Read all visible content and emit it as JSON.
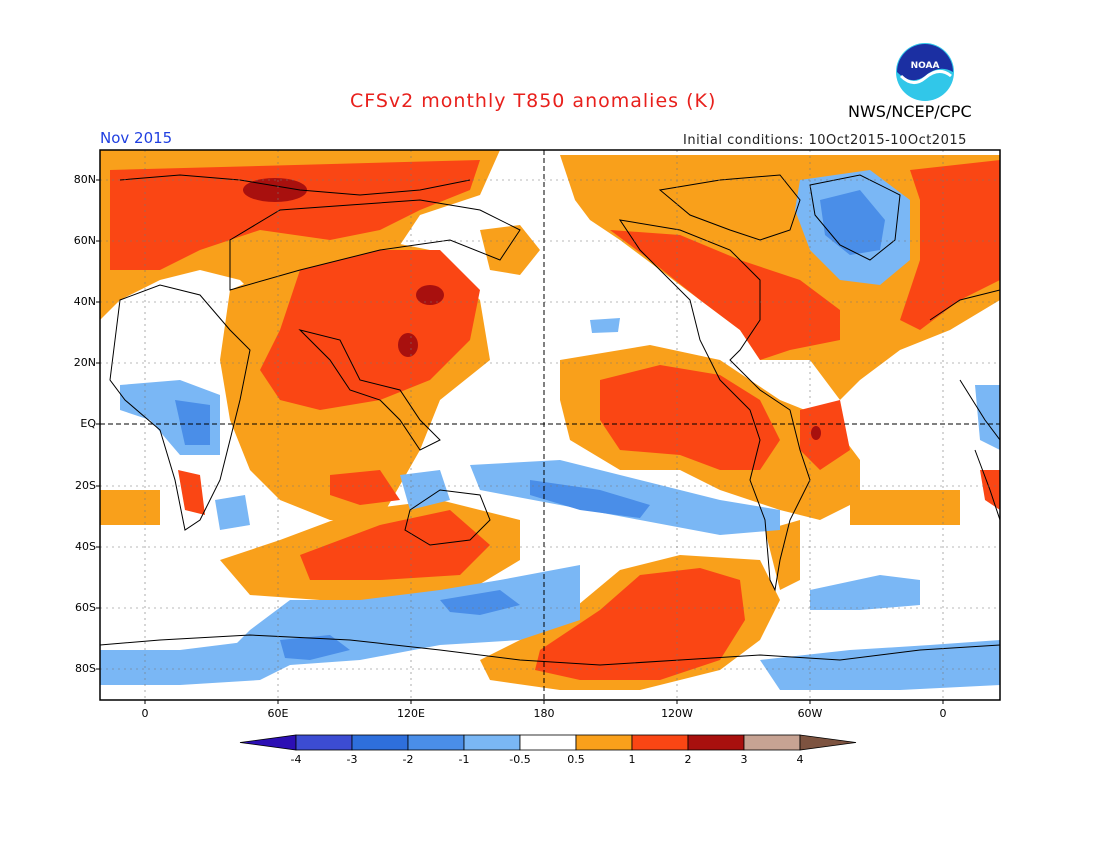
{
  "title": "CFSv2 monthly T850 anomalies (K)",
  "month": "Nov 2015",
  "agency": "NWS/NCEP/CPC",
  "initial_conditions": "Initial conditions: 10Oct2015-10Oct2015",
  "logo_text": "NOAA",
  "lat_labels": [
    "80N",
    "60N",
    "40N",
    "20N",
    "EQ",
    "20S",
    "40S",
    "60S",
    "80S"
  ],
  "lon_labels": [
    "0",
    "60E",
    "120E",
    "180",
    "120W",
    "60W",
    "0"
  ],
  "colorbar": {
    "labels": [
      "-4",
      "-3",
      "-2",
      "-1",
      "-0.5",
      "0.5",
      "1",
      "2",
      "3",
      "4"
    ],
    "colors": [
      "#2c0fb4",
      "#3c4cd2",
      "#2e6fdc",
      "#4a8ee8",
      "#7ab7f5",
      "#ffffff",
      "#f9a01b",
      "#fa4614",
      "#a8100e",
      "#c7a393",
      "#7d5340"
    ]
  }
}
